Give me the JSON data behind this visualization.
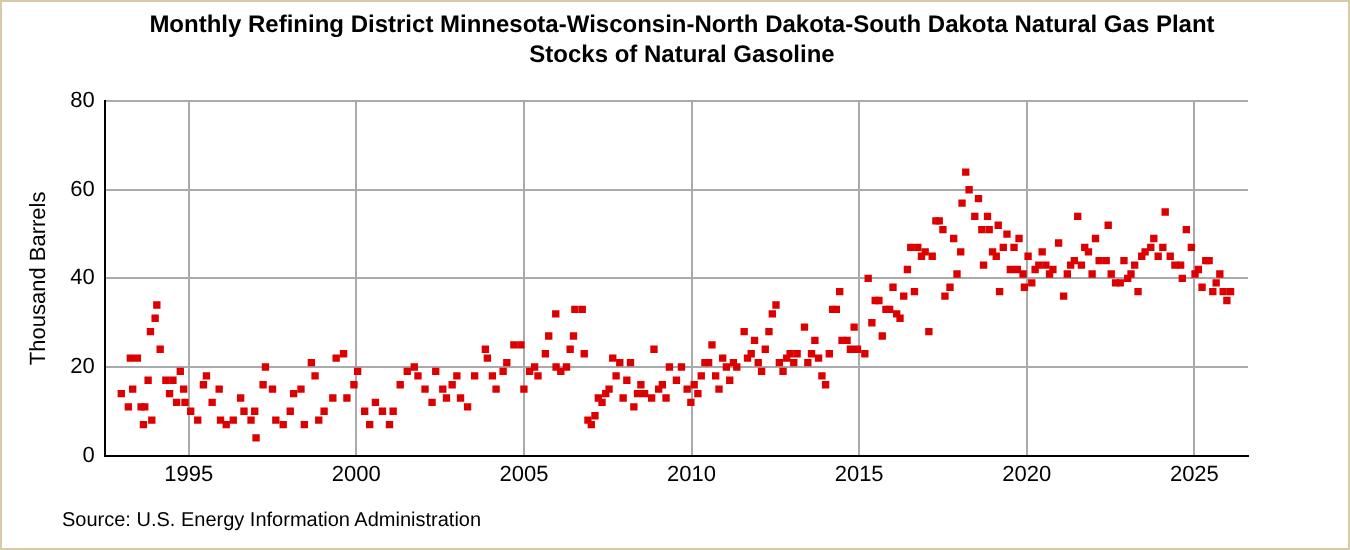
{
  "chart_data": {
    "type": "scatter",
    "title": "Monthly Refining District Minnesota-Wisconsin-North Dakota-South Dakota Natural Gas Plant Stocks of Natural Gasoline",
    "ylabel": "Thousand Barrels",
    "annotations": [
      "Source: U.S. Energy Information Administration"
    ],
    "xlim": [
      1992.5,
      2026.6
    ],
    "xticks": [
      1995,
      2000,
      2005,
      2010,
      2015,
      2020,
      2025
    ],
    "ylim": [
      0,
      80
    ],
    "yticks": [
      0,
      20,
      40,
      60,
      80
    ],
    "grid": true,
    "legend": false,
    "marker": "square",
    "series": [
      {
        "color": "#dd0000",
        "x": [
          1992.99,
          1993.2,
          1993.26,
          1993.33,
          1993.47,
          1993.58,
          1993.65,
          1993.69,
          1993.79,
          1993.86,
          1993.9,
          1994.0,
          1994.05,
          1994.15,
          1994.32,
          1994.43,
          1994.53,
          1994.64,
          1994.75,
          1994.85,
          1994.89,
          1995.06,
          1995.27,
          1995.44,
          1995.53,
          1995.7,
          1995.91,
          1995.95,
          1996.12,
          1996.33,
          1996.55,
          1996.65,
          1996.86,
          1996.97,
          1997.01,
          1997.22,
          1997.29,
          1997.5,
          1997.6,
          1997.82,
          1998.03,
          1998.13,
          1998.35,
          1998.45,
          1998.66,
          1998.77,
          1998.88,
          1999.04,
          1999.3,
          1999.4,
          1999.62,
          1999.72,
          1999.93,
          2000.04,
          2000.25,
          2000.4,
          2000.57,
          2000.78,
          2000.99,
          2001.1,
          2001.31,
          2001.52,
          2001.73,
          2001.84,
          2002.05,
          2002.26,
          2002.37,
          2002.58,
          2002.69,
          2002.86,
          2003.0,
          2003.11,
          2003.32,
          2003.53,
          2003.85,
          2003.91,
          2004.06,
          2004.17,
          2004.38,
          2004.49,
          2004.7,
          2004.91,
          2005.0,
          2005.17,
          2005.32,
          2005.42,
          2005.64,
          2005.74,
          2005.95,
          2005.96,
          2006.1,
          2006.27,
          2006.38,
          2006.48,
          2006.52,
          2006.74,
          2006.8,
          2006.91,
          2007.01,
          2007.12,
          2007.22,
          2007.33,
          2007.44,
          2007.54,
          2007.65,
          2007.75,
          2007.86,
          2007.96,
          2008.07,
          2008.18,
          2008.28,
          2008.39,
          2008.49,
          2008.6,
          2008.81,
          2008.88,
          2009.02,
          2009.13,
          2009.24,
          2009.34,
          2009.55,
          2009.7,
          2009.87,
          2009.98,
          2010.08,
          2010.19,
          2010.29,
          2010.4,
          2010.51,
          2010.61,
          2010.72,
          2010.82,
          2010.93,
          2011.04,
          2011.14,
          2011.25,
          2011.35,
          2011.57,
          2011.67,
          2011.78,
          2011.88,
          2011.99,
          2012.09,
          2012.2,
          2012.31,
          2012.41,
          2012.52,
          2012.62,
          2012.73,
          2012.84,
          2012.94,
          2013.05,
          2013.15,
          2013.37,
          2013.47,
          2013.58,
          2013.68,
          2013.79,
          2013.89,
          2014.0,
          2014.11,
          2014.21,
          2014.32,
          2014.42,
          2014.49,
          2014.64,
          2014.74,
          2014.85,
          2014.95,
          2015.17,
          2015.27,
          2015.38,
          2015.48,
          2015.59,
          2015.69,
          2015.8,
          2015.91,
          2016.01,
          2016.12,
          2016.22,
          2016.33,
          2016.44,
          2016.54,
          2016.65,
          2016.75,
          2016.86,
          2016.97,
          2017.08,
          2017.18,
          2017.29,
          2017.39,
          2017.5,
          2017.56,
          2017.71,
          2017.82,
          2017.92,
          2018.03,
          2018.07,
          2018.18,
          2018.28,
          2018.45,
          2018.56,
          2018.66,
          2018.71,
          2018.83,
          2018.88,
          2018.98,
          2019.09,
          2019.15,
          2019.19,
          2019.3,
          2019.41,
          2019.51,
          2019.62,
          2019.72,
          2019.77,
          2019.89,
          2019.93,
          2020.04,
          2020.15,
          2020.25,
          2020.36,
          2020.46,
          2020.57,
          2020.68,
          2020.78,
          2020.95,
          2021.1,
          2021.21,
          2021.31,
          2021.42,
          2021.52,
          2021.63,
          2021.73,
          2021.84,
          2021.95,
          2022.05,
          2022.16,
          2022.37,
          2022.43,
          2022.52,
          2022.65,
          2022.79,
          2022.9,
          2023.01,
          2023.11,
          2023.22,
          2023.32,
          2023.43,
          2023.53,
          2023.7,
          2023.79,
          2023.92,
          2024.06,
          2024.13,
          2024.28,
          2024.42,
          2024.59,
          2024.64,
          2024.76,
          2024.91,
          2025.02,
          2025.12,
          2025.23,
          2025.34,
          2025.44,
          2025.55,
          2025.65,
          2025.76,
          2025.86,
          2025.97,
          2026.08
        ],
        "values": [
          14,
          11,
          22,
          15,
          22,
          11,
          7,
          11,
          17,
          28,
          8,
          31,
          34,
          24,
          17,
          14,
          17,
          12,
          19,
          15,
          12,
          10,
          8,
          16,
          18,
          12,
          15,
          8,
          7,
          8,
          13,
          10,
          8,
          10,
          4,
          16,
          20,
          15,
          8,
          7,
          10,
          14,
          15,
          7,
          21,
          18,
          8,
          10,
          13,
          22,
          23,
          13,
          16,
          19,
          10,
          7,
          12,
          10,
          7,
          10,
          16,
          19,
          20,
          18,
          15,
          12,
          19,
          15,
          13,
          16,
          18,
          13,
          11,
          18,
          24,
          22,
          18,
          15,
          19,
          21,
          25,
          25,
          15,
          19,
          20,
          18,
          23,
          27,
          32,
          20,
          19,
          20,
          24,
          27,
          33,
          33,
          23,
          8,
          7,
          9,
          13,
          12,
          14,
          15,
          22,
          18,
          21,
          13,
          17,
          21,
          11,
          14,
          16,
          14,
          13,
          24,
          15,
          16,
          13,
          20,
          17,
          20,
          15,
          12,
          16,
          14,
          18,
          21,
          21,
          25,
          18,
          15,
          22,
          20,
          17,
          21,
          20,
          28,
          22,
          23,
          26,
          21,
          19,
          24,
          28,
          32,
          34,
          21,
          19,
          22,
          23,
          21,
          23,
          29,
          21,
          23,
          26,
          22,
          18,
          16,
          23,
          33,
          33,
          37,
          26,
          26,
          24,
          29,
          24,
          23,
          40,
          30,
          35,
          35,
          27,
          33,
          33,
          38,
          32,
          31,
          36,
          42,
          47,
          37,
          47,
          45,
          46,
          28,
          45,
          53,
          53,
          51,
          36,
          38,
          49,
          41,
          46,
          57,
          64,
          60,
          54,
          58,
          51,
          43,
          54,
          51,
          46,
          45,
          52,
          37,
          47,
          50,
          42,
          47,
          42,
          49,
          41,
          38,
          45,
          39,
          42,
          43,
          46,
          43,
          41,
          42,
          48,
          36,
          41,
          43,
          44,
          54,
          43,
          47,
          46,
          41,
          49,
          44,
          44,
          52,
          41,
          39,
          39,
          44,
          40,
          41,
          43,
          37,
          45,
          46,
          47,
          49,
          45,
          47,
          55,
          45,
          43,
          43,
          40,
          51,
          47,
          41,
          42,
          38,
          44,
          44,
          37,
          39,
          41,
          37,
          35,
          37
        ]
      }
    ]
  }
}
